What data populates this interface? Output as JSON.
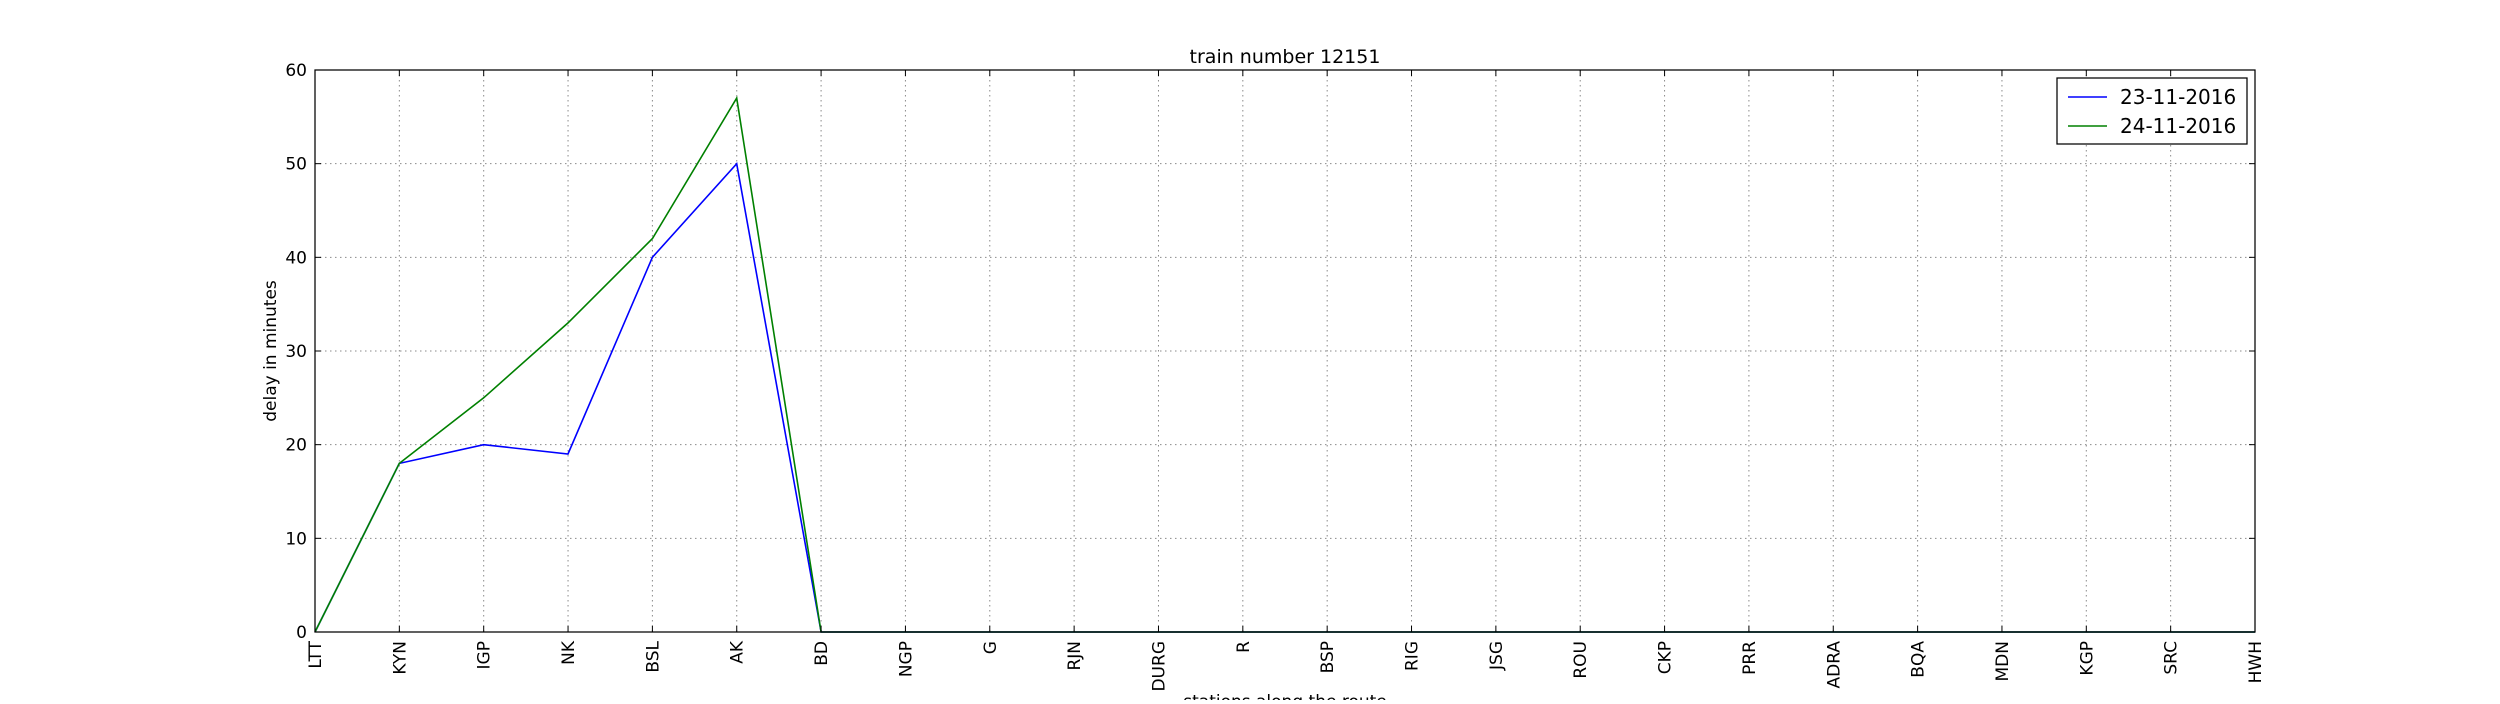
{
  "chart_data": {
    "type": "line",
    "title": "train number 12151",
    "xlabel": "stations along the route",
    "ylabel": "delay in minutes",
    "categories": [
      "LTT",
      "KYN",
      "IGP",
      "NK",
      "BSL",
      "AK",
      "BD",
      "NGP",
      "G",
      "RJN",
      "DURG",
      "R",
      "BSP",
      "RIG",
      "JSG",
      "ROU",
      "CKP",
      "PRR",
      "ADRA",
      "BQA",
      "MDN",
      "KGP",
      "SRC",
      "HWH"
    ],
    "ylim": [
      0,
      60
    ],
    "yticks": [
      0,
      10,
      20,
      30,
      40,
      50,
      60
    ],
    "grid": true,
    "legend": "top-right",
    "series": [
      {
        "name": "23-11-2016",
        "color": "#0000ff",
        "values": [
          0,
          18,
          20,
          19,
          40,
          50,
          0,
          0,
          0,
          0,
          0,
          0,
          0,
          0,
          0,
          0,
          0,
          0,
          0,
          0,
          0,
          0,
          0,
          0
        ]
      },
      {
        "name": "24-11-2016",
        "color": "#008000",
        "values": [
          0,
          18,
          25,
          33,
          42,
          57,
          0,
          0,
          0,
          0,
          0,
          0,
          0,
          0,
          0,
          0,
          0,
          0,
          0,
          0,
          0,
          0,
          0,
          0
        ]
      }
    ]
  }
}
